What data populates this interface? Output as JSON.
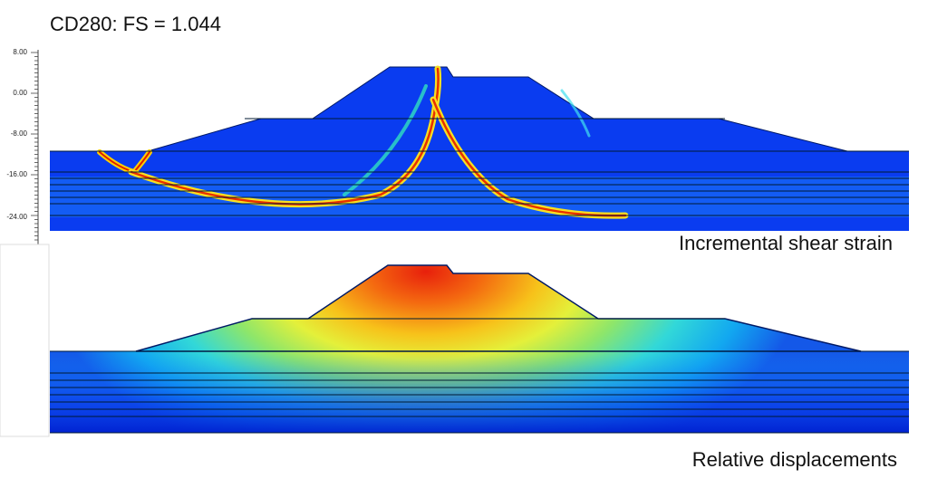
{
  "header": {
    "title": "CD280: FS = 1.044"
  },
  "ruler": {
    "ticks": [
      "8.00",
      "0.00",
      "-8.00",
      "-16.00",
      "-24.00"
    ]
  },
  "panels": [
    {
      "label": "Incremental shear strain"
    },
    {
      "label": "Relative displacements"
    }
  ]
}
